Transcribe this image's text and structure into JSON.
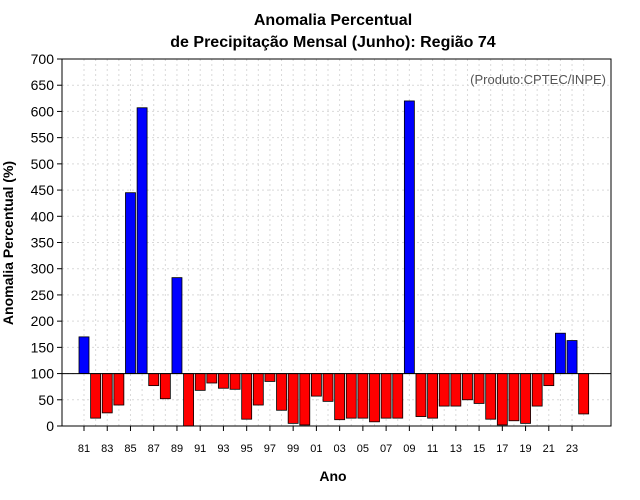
{
  "chart_data": {
    "type": "bar",
    "title_line1": "Anomalia Percentual",
    "title_line2": "de Precipitação Mensal (Junho): Região 74",
    "xlabel": "Ano",
    "ylabel": "Anomalia Percentual (%)",
    "annotation": "(Produto:CPTEC/INPE)",
    "ylim": [
      0,
      700
    ],
    "yticks": [
      0,
      50,
      100,
      150,
      200,
      250,
      300,
      350,
      400,
      450,
      500,
      550,
      600,
      650,
      700
    ],
    "baseline": 100,
    "grid": true,
    "colors": {
      "above": "#0000ff",
      "below": "#ff0000"
    },
    "categories": [
      "81",
      "82",
      "83",
      "84",
      "85",
      "86",
      "87",
      "88",
      "89",
      "90",
      "91",
      "92",
      "93",
      "94",
      "95",
      "96",
      "97",
      "98",
      "99",
      "00",
      "01",
      "02",
      "03",
      "04",
      "05",
      "06",
      "07",
      "08",
      "09",
      "10",
      "11",
      "12",
      "13",
      "14",
      "15",
      "16",
      "17",
      "18",
      "19",
      "20",
      "21",
      "22",
      "23",
      "24"
    ],
    "xtick_labels": [
      "81",
      "83",
      "85",
      "87",
      "89",
      "91",
      "93",
      "95",
      "97",
      "99",
      "01",
      "03",
      "05",
      "07",
      "09",
      "11",
      "13",
      "15",
      "17",
      "19",
      "21",
      "23"
    ],
    "values": [
      170,
      15,
      25,
      40,
      445,
      607,
      77,
      52,
      283,
      0,
      68,
      82,
      72,
      70,
      13,
      40,
      85,
      30,
      5,
      2,
      57,
      47,
      12,
      15,
      15,
      8,
      15,
      15,
      620,
      18,
      15,
      38,
      38,
      50,
      43,
      13,
      2,
      10,
      5,
      38,
      77,
      177,
      163,
      23
    ]
  }
}
